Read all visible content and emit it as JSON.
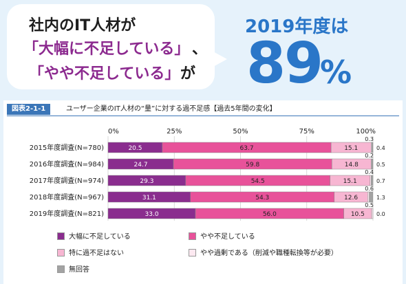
{
  "headline": {
    "line1": "社内のIT人材が",
    "line2": "「大幅に不足している」",
    "line2_suffix": "、",
    "line3": "「やや不足している」",
    "line3_suffix": "が"
  },
  "highlight": {
    "year_text": "2019年度は",
    "value": "89",
    "unit": "%"
  },
  "figure": {
    "tag": "図表2-1-1",
    "title": "ユーザー企業のIT人材の“量”に対する過不足感【過去5年間の変化】"
  },
  "chart_data": {
    "type": "bar",
    "orientation": "horizontal",
    "stacked": true,
    "xlim": [
      0,
      100
    ],
    "x_ticks": [
      "0%",
      "25%",
      "50%",
      "75%",
      "100%"
    ],
    "categories": [
      "2015年度調査(N=780)",
      "2016年度調査(N=984)",
      "2017年度調査(N=974)",
      "2018年度調査(N=967)",
      "2019年度調査(N=821)"
    ],
    "series": [
      {
        "name": "大幅に不足している",
        "color": "#8a2d8e",
        "values": [
          20.5,
          24.7,
          29.3,
          31.1,
          33.0
        ]
      },
      {
        "name": "やや不足している",
        "color": "#e8529a",
        "values": [
          63.7,
          59.8,
          54.5,
          54.3,
          56.0
        ]
      },
      {
        "name": "特に過不足はない",
        "color": "#f7b6d2",
        "values": [
          15.1,
          14.8,
          15.1,
          12.6,
          10.5
        ]
      },
      {
        "name": "やや過剰である（削減や職種転換等が必要）",
        "color": "#fde9f1",
        "values": [
          0.3,
          0.2,
          0.4,
          0.6,
          0.5
        ]
      },
      {
        "name": "無回答",
        "color": "#a3a3a3",
        "values": [
          0.4,
          0.5,
          0.7,
          1.3,
          0.0
        ]
      }
    ],
    "value_labels": [
      [
        "20.5",
        "63.7",
        "15.1",
        "0.3",
        "0.4"
      ],
      [
        "24.7",
        "59.8",
        "14.8",
        "0.2",
        "0.5"
      ],
      [
        "29.3",
        "54.5",
        "15.1",
        "0.4",
        "0.7"
      ],
      [
        "31.1",
        "54.3",
        "12.6",
        "0.6",
        "1.3"
      ],
      [
        "33.0",
        "56.0",
        "10.5",
        "0.5",
        "0.0"
      ]
    ],
    "legend_position": "bottom"
  }
}
